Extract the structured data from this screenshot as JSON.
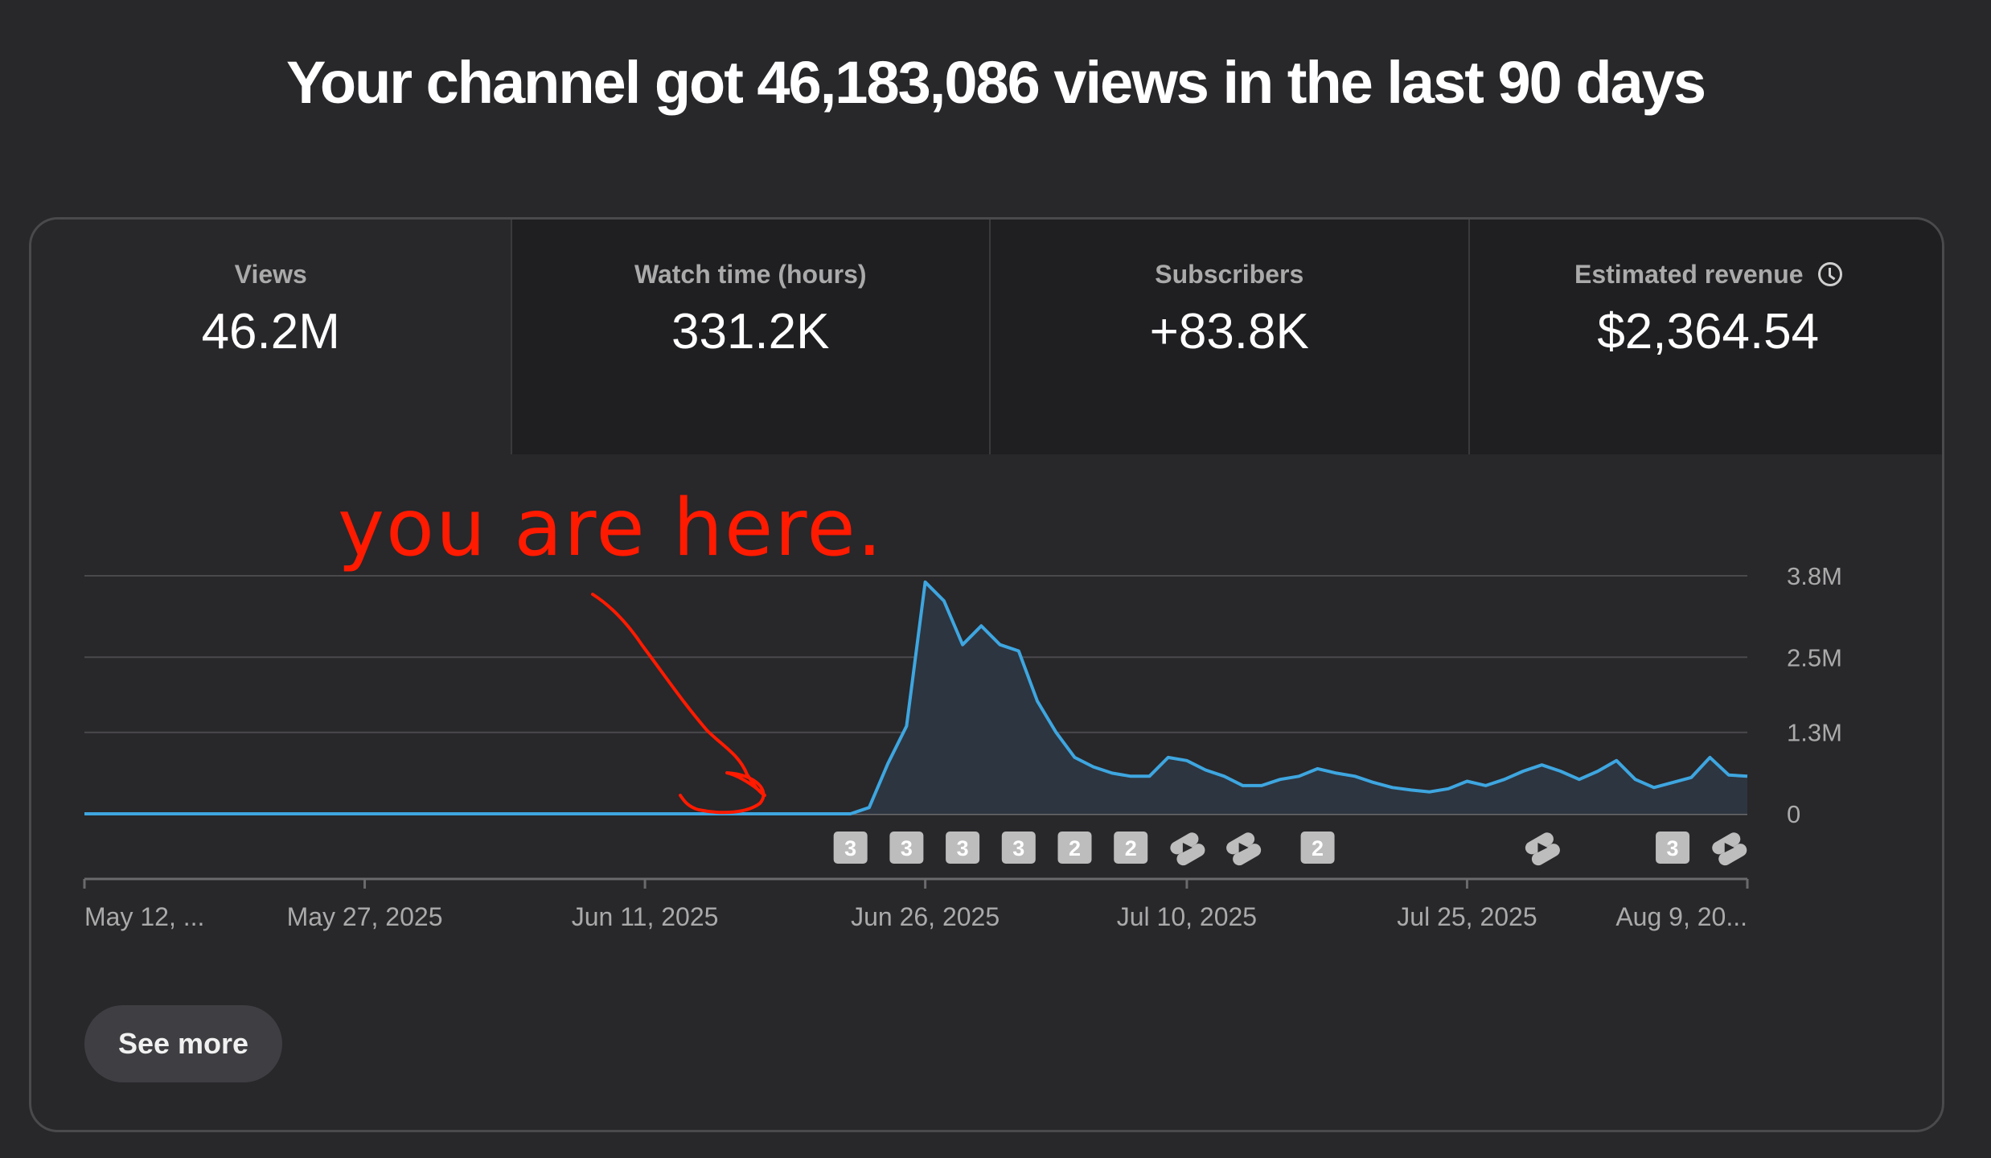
{
  "headline": "Your channel got 46,183,086 views in the last 90 days",
  "metrics": [
    {
      "label": "Views",
      "value": "46.2M",
      "active": true
    },
    {
      "label": "Watch time (hours)",
      "value": "331.2K"
    },
    {
      "label": "Subscribers",
      "value": "+83.8K"
    },
    {
      "label": "Estimated revenue",
      "value": "$2,364.54",
      "icon": "clock-icon"
    }
  ],
  "annotation": {
    "text": "you are here.",
    "color": "#ff1a00"
  },
  "see_more_label": "See more",
  "colors": {
    "line": "#3ea6e0",
    "area": "#2d3540",
    "grid": "#4a494c"
  },
  "chart_data": {
    "type": "area",
    "series": [
      {
        "values": [
          0,
          0,
          0,
          0,
          0,
          0,
          0,
          0,
          0,
          0,
          0,
          0,
          0,
          0,
          0,
          0,
          0,
          0,
          0,
          0,
          0,
          0,
          0,
          0,
          0,
          0,
          0,
          0,
          0,
          0,
          0,
          0,
          0,
          0,
          0,
          0,
          0,
          0,
          0,
          0,
          0,
          0,
          0.1,
          0.8,
          1.4,
          3.7,
          3.4,
          2.7,
          3.0,
          2.7,
          2.6,
          1.8,
          1.3,
          0.9,
          0.75,
          0.65,
          0.6,
          0.6,
          0.9,
          0.85,
          0.7,
          0.6,
          0.45,
          0.45,
          0.55,
          0.6,
          0.72,
          0.65,
          0.6,
          0.5,
          0.42,
          0.38,
          0.35,
          0.4,
          0.52,
          0.45,
          0.55,
          0.68,
          0.78,
          0.68,
          0.55,
          0.68,
          0.85,
          0.55,
          0.42,
          0.5,
          0.58,
          0.9,
          0.62,
          0.6
        ]
      }
    ],
    "x_tick_labels": [
      "May 12, ...",
      "May 27, 2025",
      "Jun 11, 2025",
      "Jun 26, 2025",
      "Jul 10, 2025",
      "Jul 25, 2025",
      "Aug 9, 20..."
    ],
    "x_tick_days": [
      0,
      15,
      30,
      45,
      59,
      74,
      89
    ],
    "y_tick_labels": [
      "3.8M",
      "2.5M",
      "1.3M",
      "0"
    ],
    "y_tick_values": [
      3.8,
      2.5,
      1.3,
      0
    ],
    "ylim": [
      0,
      3.8
    ],
    "grid": true,
    "markers": [
      {
        "day": 41,
        "label": "3",
        "kind": "badge"
      },
      {
        "day": 44,
        "label": "3",
        "kind": "badge"
      },
      {
        "day": 47,
        "label": "3",
        "kind": "badge"
      },
      {
        "day": 50,
        "label": "3",
        "kind": "badge"
      },
      {
        "day": 53,
        "label": "2",
        "kind": "badge"
      },
      {
        "day": 56,
        "label": "2",
        "kind": "badge"
      },
      {
        "day": 59,
        "label": "",
        "kind": "shorts"
      },
      {
        "day": 62,
        "label": "",
        "kind": "shorts"
      },
      {
        "day": 66,
        "label": "2",
        "kind": "badge"
      },
      {
        "day": 78,
        "label": "",
        "kind": "shorts"
      },
      {
        "day": 85,
        "label": "3",
        "kind": "badge"
      },
      {
        "day": 88,
        "label": "",
        "kind": "shorts"
      }
    ]
  }
}
